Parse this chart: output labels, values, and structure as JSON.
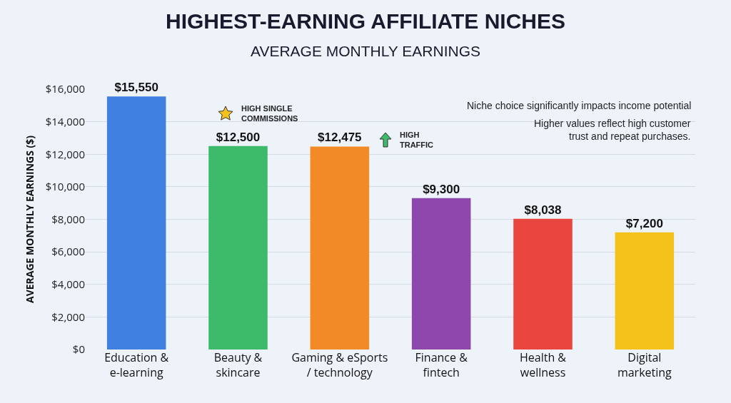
{
  "chart_data": {
    "type": "bar",
    "title": "HIGHEST-EARNING AFFILIATE NICHES",
    "subtitle": "AVERAGE MONTHLY EARNINGS",
    "ylabel": "AVERAGE MONTHLY EARNINGS ($)",
    "categories": [
      "Education &\ne-learning",
      "Beauty &\nskincare",
      "Gaming & eSports\n/ technology",
      "Finance &\nfintech",
      "Health &\nwellness",
      "Digital\nmarketing"
    ],
    "values": [
      15550,
      12500,
      12475,
      9300,
      8038,
      7200
    ],
    "colors": [
      "#3f80e0",
      "#3dba6a",
      "#f28a25",
      "#8e47ad",
      "#e8463f",
      "#f5c21b"
    ],
    "value_labels": [
      "$15,550",
      "$12,500",
      "$12,475",
      "$9,300",
      "$8,038",
      "$7,200"
    ],
    "ylim": [
      0,
      16000
    ],
    "yticks": [
      {
        "value": 0,
        "label": "$0"
      },
      {
        "value": 2000,
        "label": "$2,000"
      },
      {
        "value": 4000,
        "label": "$4,000"
      },
      {
        "value": 6000,
        "label": "$6,000"
      },
      {
        "value": 8000,
        "label": "$8,000"
      },
      {
        "value": 10000,
        "label": "$10,000"
      },
      {
        "value": 12000,
        "label": "$12,000"
      },
      {
        "value": 14000,
        "label": "$14,000"
      },
      {
        "value": 16000,
        "label": "$16,000"
      }
    ],
    "grid": "y",
    "annotations": [
      "HIGH SINGLE\nCOMMISSIONS",
      "HIGH\nTRAFFIC",
      "Niche choice significantly impacts income potential",
      "Higher values reflect high customer\ntrust and repeat purchases."
    ]
  }
}
